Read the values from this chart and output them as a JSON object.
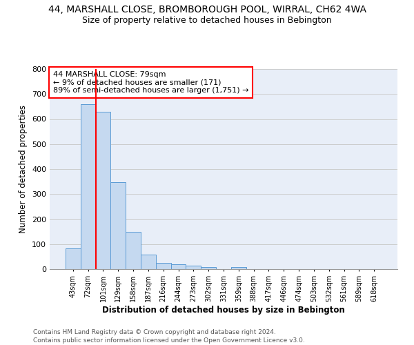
{
  "title_line1": "44, MARSHALL CLOSE, BROMBOROUGH POOL, WIRRAL, CH62 4WA",
  "title_line2": "Size of property relative to detached houses in Bebington",
  "xlabel": "Distribution of detached houses by size in Bebington",
  "ylabel": "Number of detached properties",
  "bin_labels": [
    "43sqm",
    "72sqm",
    "101sqm",
    "129sqm",
    "158sqm",
    "187sqm",
    "216sqm",
    "244sqm",
    "273sqm",
    "302sqm",
    "331sqm",
    "359sqm",
    "388sqm",
    "417sqm",
    "446sqm",
    "474sqm",
    "503sqm",
    "532sqm",
    "561sqm",
    "589sqm",
    "618sqm"
  ],
  "bar_heights": [
    82,
    660,
    630,
    347,
    148,
    57,
    26,
    20,
    13,
    8,
    0,
    8,
    0,
    0,
    0,
    0,
    0,
    0,
    0,
    0,
    0
  ],
  "bar_color": "#c5d9f0",
  "bar_edge_color": "#5b9bd5",
  "vline_x_idx": 1,
  "vline_color": "red",
  "ylim": [
    0,
    800
  ],
  "yticks": [
    0,
    100,
    200,
    300,
    400,
    500,
    600,
    700,
    800
  ],
  "annotation_title": "44 MARSHALL CLOSE: 79sqm",
  "annotation_line1": "← 9% of detached houses are smaller (171)",
  "annotation_line2": "89% of semi-detached houses are larger (1,751) →",
  "annotation_box_color": "white",
  "annotation_box_edge": "red",
  "footer_line1": "Contains HM Land Registry data © Crown copyright and database right 2024.",
  "footer_line2": "Contains public sector information licensed under the Open Government Licence v3.0.",
  "grid_color": "#cccccc",
  "plot_bg_color": "#e8eef8",
  "fig_bg_color": "#ffffff",
  "title_fontsize": 10,
  "subtitle_fontsize": 9
}
